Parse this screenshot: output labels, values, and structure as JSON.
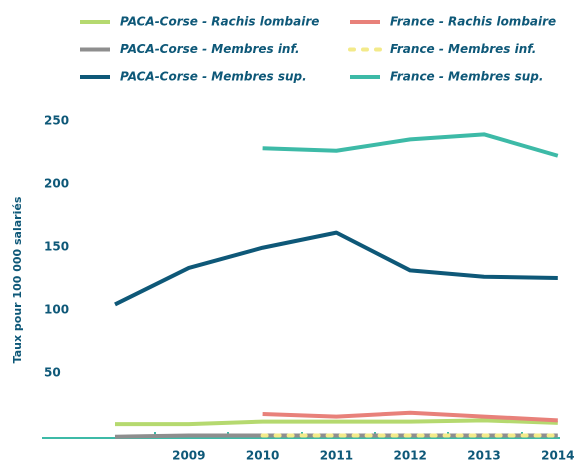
{
  "chart_data": {
    "type": "line",
    "y_label": "Taux pour 100 000 salariés",
    "categories": [
      null,
      "2009",
      "2010",
      "2011",
      "2012",
      "2013",
      "2014"
    ],
    "series": [
      {
        "name": "PACA-Corse - Rachis lombaire",
        "color": "#b5d96f",
        "values": [
          11,
          11,
          13,
          13,
          13,
          14,
          12
        ]
      },
      {
        "name": "France - Rachis lombaire",
        "color": "#e8817a",
        "values": [
          null,
          null,
          19,
          17,
          20,
          17,
          14
        ]
      },
      {
        "name": "PACA-Corse - Membres inf.",
        "color": "#8e8e8e",
        "values": [
          1,
          2,
          2,
          2,
          2,
          2,
          2
        ]
      },
      {
        "name": "France - Membres inf.",
        "color": "#f3ea8a",
        "dashed": true,
        "values": [
          null,
          null,
          2,
          2,
          2,
          2,
          2
        ]
      },
      {
        "name": "PACA-Corse - Membres sup.",
        "color": "#0e5878",
        "values": [
          106,
          135,
          151,
          163,
          133,
          128,
          127
        ]
      },
      {
        "name": "France - Membres sup.",
        "color": "#3dbaa7",
        "values": [
          null,
          null,
          230,
          228,
          237,
          241,
          224
        ]
      }
    ],
    "ylim": [
      0,
      250
    ],
    "yticks": [
      50,
      100,
      150,
      200,
      250
    ],
    "grid": false
  }
}
